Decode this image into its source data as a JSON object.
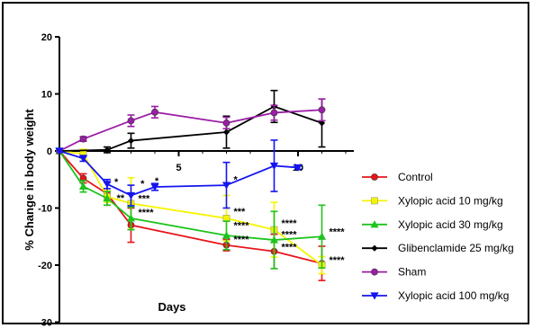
{
  "chart_data": {
    "type": "line",
    "title": "",
    "xlabel": "Days",
    "ylabel": "% Change in body weight",
    "xlim": [
      0,
      12
    ],
    "ylim": [
      -30,
      20
    ],
    "xticks": [
      5,
      10
    ],
    "yticks": [
      20,
      10,
      0,
      -10,
      -20,
      -30
    ],
    "legend_position": "right",
    "grid": false,
    "x": [
      0,
      1,
      2,
      3,
      7,
      9,
      11
    ],
    "series": [
      {
        "name": "Control",
        "color": "#e8141a",
        "marker": "circle",
        "x": [
          0,
          1,
          2,
          3,
          7,
          9,
          11
        ],
        "y": [
          0,
          -4.8,
          -7.5,
          -13,
          -16.5,
          -17.6,
          -19.7
        ],
        "err": [
          0,
          0.8,
          2.0,
          3.0,
          1.0,
          3.0,
          3.0
        ]
      },
      {
        "name": "Xylopic acid 10 mg/kg",
        "color": "#f5f500",
        "marker": "square",
        "x": [
          0,
          1,
          2,
          3,
          7,
          9,
          11
        ],
        "y": [
          0,
          -0.5,
          -8.0,
          -9.2,
          -11.8,
          -13.8,
          -20.0
        ],
        "err": [
          0,
          0.8,
          1.0,
          4.5,
          4.0,
          4.8,
          1.5
        ]
      },
      {
        "name": "Xylopic acid 30 mg/kg",
        "color": "#1ec31e",
        "marker": "triangle-up",
        "x": [
          0,
          1,
          2,
          3,
          7,
          9,
          11
        ],
        "y": [
          0,
          -6.2,
          -8.3,
          -11.8,
          -14.8,
          -15.6,
          -15.0
        ],
        "err": [
          0,
          1.0,
          1.2,
          2.0,
          2.5,
          5.0,
          5.5
        ]
      },
      {
        "name": "Glibenclamide 25 mg/kg",
        "color": "#000000",
        "marker": "diamond",
        "x": [
          0,
          2,
          3,
          7,
          9,
          11
        ],
        "y": [
          0,
          0.2,
          1.8,
          3.3,
          7.8,
          4.9
        ],
        "err": [
          0,
          0.5,
          1.3,
          2.8,
          2.8,
          4.2
        ]
      },
      {
        "name": "Sham",
        "color": "#9b1ea6",
        "marker": "circle",
        "x": [
          0,
          1,
          3,
          4,
          7,
          9,
          11
        ],
        "y": [
          0,
          2.1,
          5.3,
          6.8,
          4.9,
          6.7,
          7.2
        ],
        "err": [
          0,
          0.4,
          1.0,
          1.0,
          1.0,
          1.3,
          1.9
        ]
      },
      {
        "name": "Xylopic acid 100 mg/kg",
        "color": "#1414f0",
        "marker": "triangle-down",
        "x": [
          0,
          1,
          2,
          3,
          4,
          7,
          9,
          10
        ],
        "y": [
          0,
          -1.3,
          -5.8,
          -7.8,
          -6.3,
          -6.0,
          -2.6,
          -2.9
        ],
        "err": [
          0,
          0.5,
          0.8,
          1.8,
          0.6,
          4.0,
          4.5,
          0.3
        ]
      }
    ],
    "annotations": [
      {
        "text": "*",
        "x": 3.4,
        "y": -6.3
      },
      {
        "text": "*",
        "x": 4.0,
        "y": -5.8
      },
      {
        "text": "*",
        "x": 2.3,
        "y": -6.0
      },
      {
        "text": "**",
        "x": 2.4,
        "y": -8.8
      },
      {
        "text": "***",
        "x": 3.3,
        "y": -8.9
      },
      {
        "text": "****",
        "x": 3.3,
        "y": -11.3
      },
      {
        "text": "*",
        "x": 7.3,
        "y": -5.6
      },
      {
        "text": "***",
        "x": 7.3,
        "y": -11.2
      },
      {
        "text": "****",
        "x": 7.3,
        "y": -13.6
      },
      {
        "text": "****",
        "x": 7.3,
        "y": -16.1
      },
      {
        "text": "****",
        "x": 9.3,
        "y": -13.2
      },
      {
        "text": "****",
        "x": 9.3,
        "y": -15.2
      },
      {
        "text": "****",
        "x": 9.3,
        "y": -17.4
      },
      {
        "text": "****",
        "x": 11.3,
        "y": -14.7
      },
      {
        "text": "****",
        "x": 11.3,
        "y": -19.7
      }
    ]
  }
}
